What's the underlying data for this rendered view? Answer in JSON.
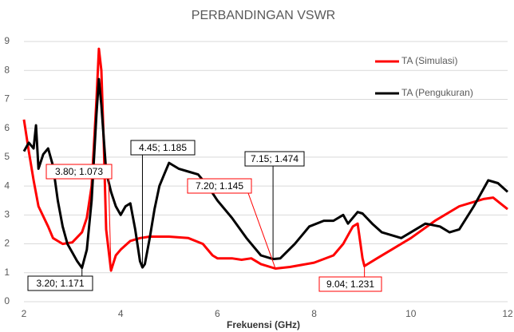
{
  "chart_data": {
    "type": "line",
    "title": "PERBANDINGAN VSWR",
    "x_label": "Frekuensi (GHz)",
    "xlim": [
      2,
      12
    ],
    "xticks": [
      2,
      4,
      6,
      8,
      10,
      12
    ],
    "ylim": [
      0,
      9
    ],
    "yticks": [
      0,
      1,
      2,
      3,
      4,
      5,
      6,
      7,
      8,
      9
    ],
    "grid": true,
    "legend": "upper right",
    "series": [
      {
        "name": "TA (Simulasi)",
        "color": "#ff0000",
        "x": [
          2,
          2.1,
          2.2,
          2.3,
          2.5,
          2.6,
          2.8,
          3.0,
          3.2,
          3.3,
          3.4,
          3.5,
          3.55,
          3.6,
          3.65,
          3.7,
          3.8,
          3.9,
          4.0,
          4.2,
          4.4,
          4.6,
          5.0,
          5.4,
          5.7,
          5.9,
          6.0,
          6.3,
          6.5,
          6.7,
          6.9,
          7.2,
          7.5,
          8.0,
          8.4,
          8.6,
          8.8,
          8.9,
          9.0,
          9.04,
          9.3,
          9.6,
          10,
          10.5,
          11,
          11.5,
          11.7,
          12
        ],
        "values": [
          6.3,
          5.2,
          4.2,
          3.3,
          2.6,
          2.2,
          2.0,
          2.05,
          2.4,
          2.9,
          4.0,
          7.0,
          8.75,
          8.0,
          5.5,
          2.5,
          1.073,
          1.6,
          1.8,
          2.1,
          2.2,
          2.25,
          2.25,
          2.2,
          2.0,
          1.6,
          1.5,
          1.5,
          1.45,
          1.5,
          1.3,
          1.145,
          1.2,
          1.35,
          1.6,
          2.0,
          2.6,
          2.7,
          1.5,
          1.231,
          1.5,
          1.8,
          2.2,
          2.8,
          3.3,
          3.55,
          3.6,
          3.2
        ]
      },
      {
        "name": "TA (Pengukuran)",
        "color": "#000000",
        "x": [
          2,
          2.1,
          2.2,
          2.25,
          2.3,
          2.4,
          2.5,
          2.6,
          2.7,
          2.8,
          2.9,
          3.0,
          3.1,
          3.2,
          3.3,
          3.4,
          3.5,
          3.55,
          3.6,
          3.7,
          3.8,
          3.9,
          4.0,
          4.1,
          4.2,
          4.3,
          4.4,
          4.45,
          4.5,
          4.6,
          4.7,
          4.8,
          4.9,
          5.0,
          5.2,
          5.4,
          5.6,
          5.8,
          6.0,
          6.3,
          6.6,
          6.9,
          7.15,
          7.3,
          7.6,
          7.9,
          8.2,
          8.4,
          8.6,
          8.7,
          8.9,
          9.0,
          9.2,
          9.4,
          9.6,
          9.8,
          10.0,
          10.3,
          10.6,
          10.8,
          11.0,
          11.3,
          11.6,
          11.8,
          12
        ],
        "values": [
          5.2,
          5.5,
          5.3,
          6.1,
          4.6,
          5.1,
          5.3,
          4.7,
          3.5,
          2.6,
          2.0,
          1.7,
          1.4,
          1.171,
          1.8,
          3.5,
          6.5,
          7.7,
          6.8,
          4.5,
          3.8,
          3.3,
          3.0,
          3.3,
          3.4,
          2.5,
          1.4,
          1.185,
          1.3,
          2.2,
          3.2,
          4.0,
          4.4,
          4.8,
          4.6,
          4.5,
          4.4,
          4.0,
          3.5,
          2.9,
          2.2,
          1.6,
          1.474,
          1.5,
          2.0,
          2.6,
          2.8,
          2.8,
          3.0,
          2.7,
          3.1,
          3.05,
          2.7,
          2.4,
          2.3,
          2.2,
          2.4,
          2.7,
          2.6,
          2.4,
          2.5,
          3.3,
          4.2,
          4.1,
          3.8
        ]
      }
    ],
    "annotations": [
      {
        "label": "3.80; 1.073",
        "x": 3.8,
        "y": 1.073,
        "color": "#ff0000"
      },
      {
        "label": "3.20; 1.171",
        "x": 3.2,
        "y": 1.171,
        "color": "#000000"
      },
      {
        "label": "4.45; 1.185",
        "x": 4.45,
        "y": 1.185,
        "color": "#000000"
      },
      {
        "label": "7.20; 1.145",
        "x": 7.2,
        "y": 1.145,
        "color": "#ff0000"
      },
      {
        "label": "7.15; 1.474",
        "x": 7.15,
        "y": 1.474,
        "color": "#000000"
      },
      {
        "label": "9.04; 1.231",
        "x": 9.04,
        "y": 1.231,
        "color": "#ff0000"
      }
    ]
  }
}
